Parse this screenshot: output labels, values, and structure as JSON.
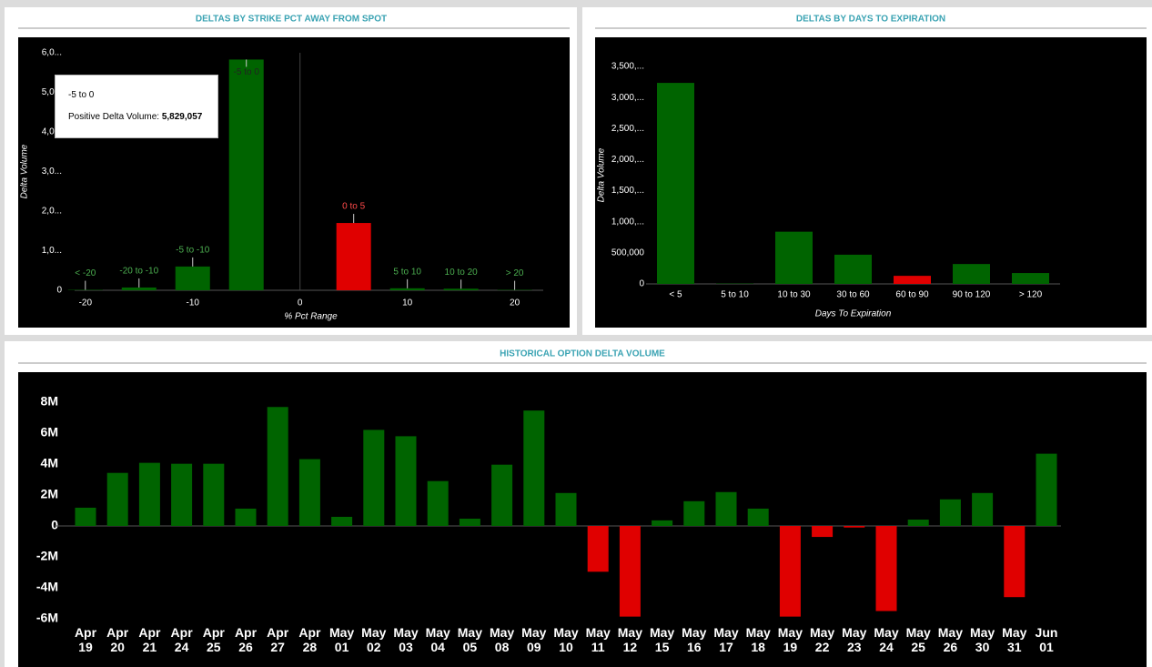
{
  "chart_data": [
    {
      "type": "bar",
      "title": "DELTAS BY STRIKE PCT AWAY FROM SPOT",
      "xlabel": "% Pct Range",
      "ylabel": "Delta Volume",
      "categories": [
        "< -20",
        "-20 to -10",
        "-5 to -10",
        "-5 to 0",
        "0 to 5",
        "5 to 10",
        "10 to 20",
        "> 20"
      ],
      "x": [
        -20,
        -15,
        -10,
        -5,
        5,
        10,
        15,
        20
      ],
      "values": [
        10000,
        70000,
        600000,
        5829057,
        1700000,
        50000,
        40000,
        10000
      ],
      "colors": [
        "#006400",
        "#006400",
        "#006400",
        "#006400",
        "#e00000",
        "#006400",
        "#006400",
        "#006400"
      ],
      "label_colors": [
        "#4caf50",
        "#4caf50",
        "#4caf50",
        "#222222",
        "#ff4a4a",
        "#4caf50",
        "#4caf50",
        "#4caf50"
      ],
      "xlim": [
        -21,
        23
      ],
      "xticks": [
        -20,
        -10,
        0,
        10,
        20
      ],
      "ylim": [
        0,
        6000000
      ],
      "yticks": [
        0,
        {
          "value": 1000000,
          "label": "1,0..."
        },
        {
          "value": 2000000,
          "label": "2,0..."
        },
        {
          "value": 3000000,
          "label": "3,0..."
        },
        {
          "value": 4000000,
          "label": "4,0..."
        },
        {
          "value": 5000000,
          "label": "5,0..."
        },
        {
          "value": 6000000,
          "label": "6,0..."
        }
      ],
      "tooltip": {
        "title": "-5 to 0",
        "label": "Positive Delta Volume:",
        "value_label": "5,829,057"
      }
    },
    {
      "type": "bar",
      "title": "DELTAS BY DAYS TO EXPIRATION",
      "xlabel": "Days To Expiration",
      "ylabel": "Delta Volume",
      "categories": [
        "< 5",
        "5 to 10",
        "10 to 30",
        "30 to 60",
        "60 to 90",
        "90 to 120",
        "> 120"
      ],
      "values": [
        3235000,
        5000,
        840000,
        470000,
        130000,
        320000,
        175000
      ],
      "colors": [
        "#006400",
        "#006400",
        "#006400",
        "#006400",
        "#e00000",
        "#006400",
        "#006400"
      ],
      "ylim": [
        0,
        3500000
      ],
      "yticks": [
        0,
        {
          "value": 500000,
          "label": "500,000"
        },
        {
          "value": 1000000,
          "label": "1,000,..."
        },
        {
          "value": 1500000,
          "label": "1,500,..."
        },
        {
          "value": 2000000,
          "label": "2,000,..."
        },
        {
          "value": 2500000,
          "label": "2,500,..."
        },
        {
          "value": 3000000,
          "label": "3,000,..."
        },
        {
          "value": 3500000,
          "label": "3,500,..."
        }
      ]
    },
    {
      "type": "bar",
      "title": "HISTORICAL OPTION DELTA VOLUME",
      "categories": [
        "Apr 19",
        "Apr 20",
        "Apr 21",
        "Apr 24",
        "Apr 25",
        "Apr 26",
        "Apr 27",
        "Apr 28",
        "May 01",
        "May 02",
        "May 03",
        "May 04",
        "May 05",
        "May 08",
        "May 09",
        "May 10",
        "May 11",
        "May 12",
        "May 15",
        "May 16",
        "May 17",
        "May 18",
        "May 19",
        "May 22",
        "May 23",
        "May 24",
        "May 25",
        "May 26",
        "May 30",
        "May 31",
        "Jun 01"
      ],
      "values": [
        1180000,
        3430000,
        4080000,
        4020000,
        4020000,
        1120000,
        7690000,
        4320000,
        590000,
        6210000,
        5800000,
        2900000,
        470000,
        3960000,
        7460000,
        2130000,
        -2960000,
        -5860000,
        360000,
        1600000,
        2190000,
        1120000,
        -5860000,
        -710000,
        -100000,
        -5500000,
        410000,
        1720000,
        2130000,
        -4600000,
        4670000
      ],
      "colors": [
        "#006400",
        "#006400",
        "#006400",
        "#006400",
        "#006400",
        "#006400",
        "#006400",
        "#006400",
        "#006400",
        "#006400",
        "#006400",
        "#006400",
        "#006400",
        "#006400",
        "#006400",
        "#006400",
        "#e00000",
        "#e00000",
        "#006400",
        "#006400",
        "#006400",
        "#006400",
        "#e00000",
        "#e00000",
        "#e00000",
        "#e00000",
        "#006400",
        "#006400",
        "#006400",
        "#e00000",
        "#006400"
      ],
      "ylim": [
        -6000000,
        8000000
      ],
      "yticks": [
        {
          "value": -6000000,
          "label": "-6M"
        },
        {
          "value": -4000000,
          "label": "-4M"
        },
        {
          "value": -2000000,
          "label": "-2M"
        },
        0,
        {
          "value": 2000000,
          "label": "2M"
        },
        {
          "value": 4000000,
          "label": "4M"
        },
        {
          "value": 6000000,
          "label": "6M"
        },
        {
          "value": 8000000,
          "label": "8M"
        }
      ]
    }
  ]
}
